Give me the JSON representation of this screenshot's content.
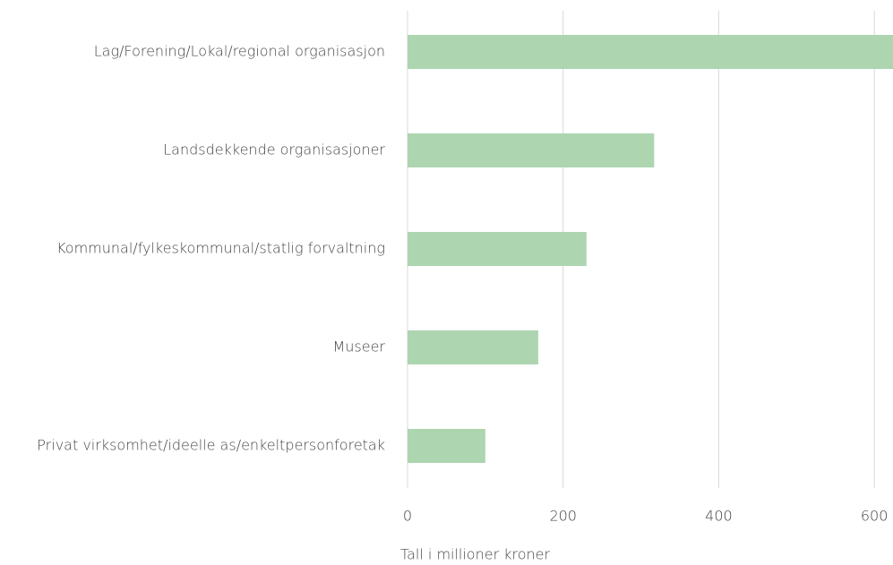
{
  "chart_data": {
    "type": "bar",
    "orientation": "horizontal",
    "categories": [
      "Lag/Forening/Lokal/regional organisasjon",
      "Landsdekkende organisasjoner",
      "Kommunal/fylkeskommunal/statlig forvaltning",
      "Museer",
      "Privat virksomhet/ideelle as/enkeltpersonforetak"
    ],
    "values": [
      624,
      317,
      230,
      168,
      100
    ],
    "color": "#acd5b0",
    "xlabel": "Tall i millioner kroner",
    "xlim": [
      0,
      624
    ],
    "xticks": [
      0,
      200,
      400,
      600
    ],
    "grid": true
  }
}
